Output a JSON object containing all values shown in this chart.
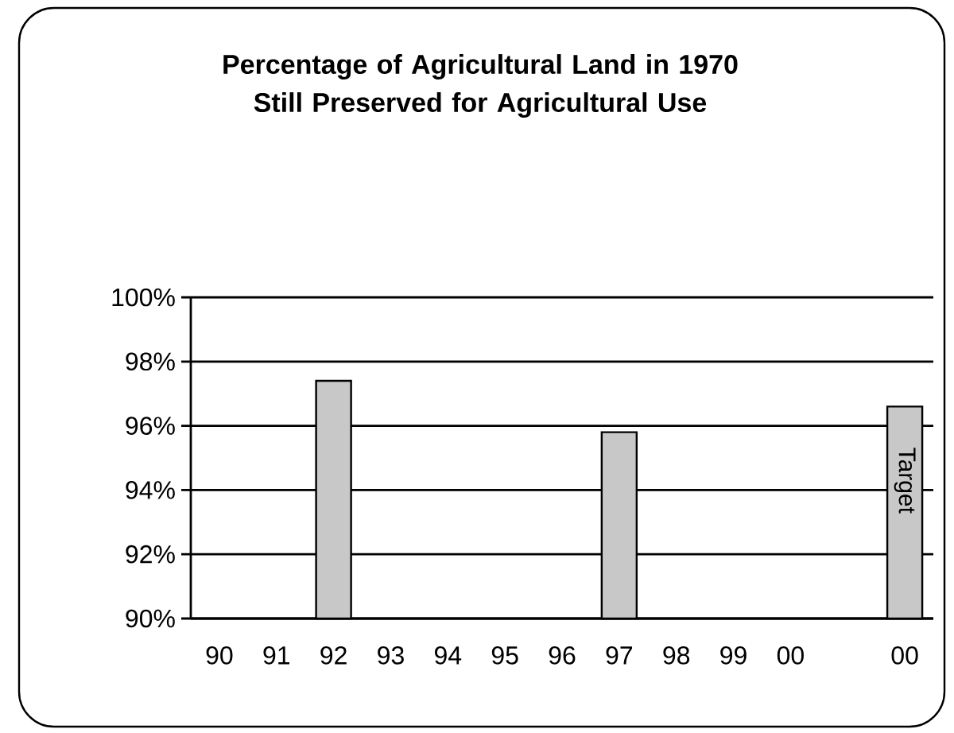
{
  "chart_data": {
    "type": "bar",
    "title": "Percentage of Agricultural Land in 1970 Still Preserved for Agricultural Use",
    "categories": [
      "90",
      "91",
      "92",
      "93",
      "94",
      "95",
      "96",
      "97",
      "98",
      "99",
      "00",
      null,
      "00"
    ],
    "values": [
      null,
      null,
      97.4,
      null,
      null,
      null,
      null,
      95.8,
      null,
      null,
      null,
      null,
      96.6
    ],
    "color": "#c8c8c8",
    "ylim": [
      90,
      100
    ],
    "yticks": [
      {
        "value": 90,
        "label": "90%"
      },
      {
        "value": 92,
        "label": "92%"
      },
      {
        "value": 94,
        "label": "94%"
      },
      {
        "value": 96,
        "label": "96%"
      },
      {
        "value": 98,
        "label": "98%"
      },
      {
        "value": 100,
        "label": "100%"
      }
    ],
    "grid": "y",
    "annotations": [
      "Target"
    ]
  }
}
